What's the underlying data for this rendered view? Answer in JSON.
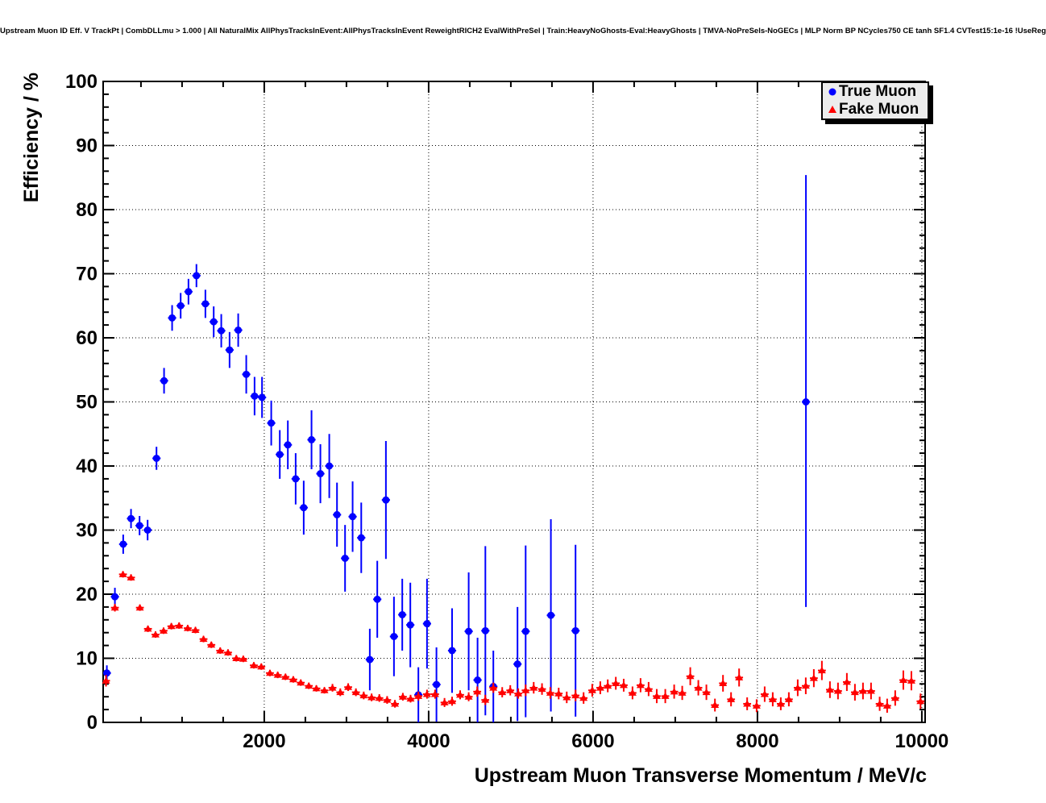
{
  "header": {
    "title": "Upstream Muon ID Eff. V TrackPt | CombDLLmu > 1.000 | All NaturalMix AllPhysTracksInEvent:AllPhysTracksInEvent ReweightRICH2 EvalWithPreSel | Train:HeavyNoGhosts-Eval:HeavyGhosts | TMVA-NoPreSels-NoGECs | MLP Norm BP NCycles750 CE tanh SF1.4 CVTest15:1e-16 !UseReg"
  },
  "legend": {
    "entries": [
      {
        "label": "True Muon",
        "marker": "circle",
        "color": "#0000ff"
      },
      {
        "label": "Fake Muon",
        "marker": "triangle",
        "color": "#ff0000"
      }
    ]
  },
  "chart_data": {
    "type": "scatter",
    "title": "Upstream Muon ID Eff. V TrackPt | CombDLLmu > 1.000 | All NaturalMix AllPhysTracksInEvent:AllPhysTracksInEvent ReweightRICH2 EvalWithPreSel | Train:HeavyNoGhosts-Eval:HeavyGhosts | TMVA-NoPreSels-NoGECs | MLP Norm BP NCycles750 CE tanh SF1.4 CVTest15:1e-16 !UseReg",
    "xlabel": "Upstream Muon Transverse Momentum / MeV/c",
    "ylabel": "Efficiency / %",
    "xlim": [
      40,
      10040
    ],
    "ylim": [
      0,
      100
    ],
    "grid": "dotted-on-major",
    "legend_position": "top-right",
    "xticks": [
      {
        "value": 2000,
        "label": "2000"
      },
      {
        "value": 4000,
        "label": "4000"
      },
      {
        "value": 6000,
        "label": "6000"
      },
      {
        "value": 8000,
        "label": "8000"
      },
      {
        "value": 10000,
        "label": "10000"
      }
    ],
    "yticks": [
      {
        "value": 0,
        "label": "0"
      },
      {
        "value": 10,
        "label": "10"
      },
      {
        "value": 20,
        "label": "20"
      },
      {
        "value": 30,
        "label": "30"
      },
      {
        "value": 40,
        "label": "40"
      },
      {
        "value": 50,
        "label": "50"
      },
      {
        "value": 60,
        "label": "60"
      },
      {
        "value": 70,
        "label": "70"
      },
      {
        "value": 80,
        "label": "80"
      },
      {
        "value": 90,
        "label": "90"
      },
      {
        "value": 100,
        "label": "100"
      }
    ],
    "x_minor_step": 500,
    "y_minor_step": 2,
    "series": [
      {
        "name": "True Muon",
        "marker": "circle",
        "color": "#0000ff",
        "xerr": 50,
        "points": [
          [
            85,
            7.7,
            1.2
          ],
          [
            183,
            19.6,
            1.4
          ],
          [
            284,
            27.8,
            1.5
          ],
          [
            379,
            31.8,
            1.5
          ],
          [
            483,
            30.7,
            1.5
          ],
          [
            581,
            30.0,
            1.6
          ],
          [
            689,
            41.2,
            1.8
          ],
          [
            781,
            53.3,
            2.0
          ],
          [
            879,
            63.1,
            2.0
          ],
          [
            983,
            65.0,
            2.0
          ],
          [
            1078,
            67.2,
            2.0
          ],
          [
            1175,
            69.7,
            1.8
          ],
          [
            1284,
            65.3,
            2.2
          ],
          [
            1385,
            62.5,
            2.4
          ],
          [
            1477,
            61.1,
            2.6
          ],
          [
            1578,
            58.1,
            2.8
          ],
          [
            1683,
            61.2,
            2.6
          ],
          [
            1781,
            54.3,
            3.0
          ],
          [
            1882,
            50.9,
            3.0
          ],
          [
            1973,
            50.7,
            3.2
          ],
          [
            2085,
            46.7,
            3.5
          ],
          [
            2189,
            41.8,
            3.8
          ],
          [
            2287,
            43.3,
            3.8
          ],
          [
            2382,
            38.0,
            4.0
          ],
          [
            2480,
            33.5,
            4.2
          ],
          [
            2575,
            44.1,
            4.6
          ],
          [
            2683,
            38.8,
            4.6
          ],
          [
            2791,
            40.0,
            5.0
          ],
          [
            2885,
            32.4,
            5.0
          ],
          [
            2983,
            25.6,
            5.2
          ],
          [
            3075,
            32.1,
            5.5
          ],
          [
            3180,
            28.8,
            5.5
          ],
          [
            3284,
            9.8,
            4.8
          ],
          [
            3375,
            19.2,
            6.0
          ],
          [
            3480,
            34.7,
            9.2
          ],
          [
            3578,
            13.4,
            6.2
          ],
          [
            3679,
            16.8,
            5.6
          ],
          [
            3777,
            15.2,
            6.6
          ],
          [
            3875,
            4.3,
            4.3
          ],
          [
            3980,
            15.4,
            7.0
          ],
          [
            4095,
            5.9,
            5.8
          ],
          [
            4285,
            11.2,
            6.6
          ],
          [
            4487,
            14.2,
            9.2
          ],
          [
            4595,
            6.6,
            6.6
          ],
          [
            4690,
            14.3,
            13.2
          ],
          [
            4787,
            5.6,
            5.6
          ],
          [
            5081,
            9.1,
            8.9
          ],
          [
            5180,
            14.2,
            13.4
          ],
          [
            5487,
            16.7,
            15.0
          ],
          [
            5787,
            14.3,
            13.4
          ],
          [
            8590,
            50.0,
            32.0,
            35.4
          ]
        ]
      },
      {
        "name": "Fake Muon",
        "marker": "triangle",
        "color": "#ff0000",
        "xerr": 48,
        "points": [
          [
            75,
            6.5,
            0.9
          ],
          [
            183,
            17.9,
            0.6
          ],
          [
            281,
            23.1,
            0.5
          ],
          [
            379,
            22.6,
            0.5
          ],
          [
            487,
            17.9,
            0.5
          ],
          [
            585,
            14.6,
            0.5
          ],
          [
            677,
            13.7,
            0.5
          ],
          [
            775,
            14.3,
            0.5
          ],
          [
            870,
            15.0,
            0.5
          ],
          [
            964,
            15.1,
            0.5
          ],
          [
            1069,
            14.7,
            0.5
          ],
          [
            1163,
            14.4,
            0.5
          ],
          [
            1261,
            13.0,
            0.5
          ],
          [
            1356,
            12.1,
            0.5
          ],
          [
            1464,
            11.2,
            0.5
          ],
          [
            1559,
            10.9,
            0.5
          ],
          [
            1660,
            10.0,
            0.5
          ],
          [
            1745,
            9.9,
            0.5
          ],
          [
            1873,
            8.9,
            0.5
          ],
          [
            1964,
            8.7,
            0.5
          ],
          [
            2069,
            7.7,
            0.5
          ],
          [
            2164,
            7.4,
            0.5
          ],
          [
            2258,
            7.1,
            0.5
          ],
          [
            2353,
            6.7,
            0.5
          ],
          [
            2444,
            6.2,
            0.5
          ],
          [
            2542,
            5.7,
            0.5
          ],
          [
            2634,
            5.3,
            0.5
          ],
          [
            2732,
            5.0,
            0.5
          ],
          [
            2830,
            5.4,
            0.6
          ],
          [
            2925,
            4.7,
            0.6
          ],
          [
            3021,
            5.5,
            0.6
          ],
          [
            3115,
            4.7,
            0.6
          ],
          [
            3210,
            4.2,
            0.6
          ],
          [
            3306,
            3.9,
            0.6
          ],
          [
            3400,
            3.8,
            0.6
          ],
          [
            3495,
            3.5,
            0.6
          ],
          [
            3590,
            2.9,
            0.6
          ],
          [
            3686,
            4.0,
            0.6
          ],
          [
            3780,
            3.7,
            0.6
          ],
          [
            3875,
            4.1,
            0.7
          ],
          [
            3980,
            4.4,
            0.7
          ],
          [
            4078,
            4.4,
            0.7
          ],
          [
            4193,
            3.1,
            0.7
          ],
          [
            4285,
            3.3,
            0.7
          ],
          [
            4383,
            4.3,
            0.7
          ],
          [
            4487,
            4.0,
            0.7
          ],
          [
            4591,
            4.8,
            0.8
          ],
          [
            4689,
            3.5,
            0.8
          ],
          [
            4787,
            5.4,
            0.8
          ],
          [
            4895,
            4.7,
            0.8
          ],
          [
            4993,
            5.0,
            0.8
          ],
          [
            5090,
            4.5,
            0.8
          ],
          [
            5180,
            5.0,
            0.9
          ],
          [
            5278,
            5.4,
            0.9
          ],
          [
            5379,
            5.2,
            0.9
          ],
          [
            5480,
            4.6,
            0.9
          ],
          [
            5582,
            4.5,
            0.9
          ],
          [
            5680,
            3.9,
            0.9
          ],
          [
            5787,
            4.2,
            0.9
          ],
          [
            5885,
            3.8,
            0.9
          ],
          [
            5990,
            5.0,
            1.0
          ],
          [
            6088,
            5.4,
            1.0
          ],
          [
            6179,
            5.7,
            1.0
          ],
          [
            6277,
            6.1,
            1.0
          ],
          [
            6373,
            5.8,
            1.0
          ],
          [
            6480,
            4.6,
            1.0
          ],
          [
            6578,
            5.8,
            1.1
          ],
          [
            6676,
            5.2,
            1.1
          ],
          [
            6775,
            4.1,
            1.1
          ],
          [
            6879,
            4.1,
            1.1
          ],
          [
            6987,
            4.8,
            1.1
          ],
          [
            7085,
            4.6,
            1.1
          ],
          [
            7183,
            7.2,
            1.4
          ],
          [
            7281,
            5.4,
            1.2
          ],
          [
            7379,
            4.7,
            1.2
          ],
          [
            7483,
            2.7,
            1.0
          ],
          [
            7581,
            6.1,
            1.3
          ],
          [
            7679,
            3.6,
            1.1
          ],
          [
            7777,
            7.0,
            1.4
          ],
          [
            7875,
            2.9,
            1.0
          ],
          [
            7990,
            2.6,
            1.0
          ],
          [
            8088,
            4.4,
            1.2
          ],
          [
            8186,
            3.6,
            1.1
          ],
          [
            8284,
            2.9,
            1.0
          ],
          [
            8382,
            3.6,
            1.1
          ],
          [
            8490,
            5.4,
            1.3
          ],
          [
            8588,
            5.7,
            1.3
          ],
          [
            8686,
            6.9,
            1.4
          ],
          [
            8784,
            8.1,
            1.5
          ],
          [
            8882,
            5.1,
            1.3
          ],
          [
            8980,
            4.9,
            1.3
          ],
          [
            9088,
            6.3,
            1.4
          ],
          [
            9186,
            4.7,
            1.3
          ],
          [
            9284,
            4.9,
            1.3
          ],
          [
            9382,
            4.9,
            1.3
          ],
          [
            9487,
            2.9,
            1.1
          ],
          [
            9578,
            2.6,
            1.1
          ],
          [
            9676,
            3.8,
            1.2
          ],
          [
            9775,
            6.6,
            1.5
          ],
          [
            9873,
            6.5,
            1.5
          ],
          [
            9984,
            3.3,
            1.2
          ]
        ]
      }
    ]
  }
}
